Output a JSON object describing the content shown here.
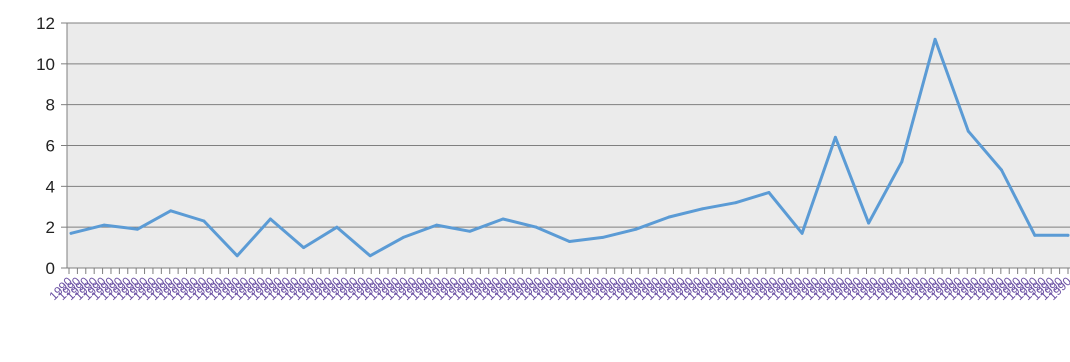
{
  "chart_data": {
    "type": "line",
    "title": "",
    "xlabel": "",
    "ylabel": "",
    "ylim": [
      0,
      12
    ],
    "yticks": [
      0,
      2,
      4,
      6,
      8,
      10,
      12
    ],
    "grid": true,
    "legend": "none",
    "colors": {
      "line": "#5b9bd5",
      "plot_background": "#ebebeb",
      "gridline": "#7f7f7f",
      "tick_label": "#6a4fa3"
    },
    "x_tick_count": 120,
    "x_tick_label_text": "1990",
    "series": [
      {
        "values": [
          1.7,
          2.1,
          1.9,
          2.8,
          2.3,
          0.6,
          2.4,
          1.0,
          2.0,
          0.6,
          1.5,
          2.1,
          1.8,
          2.4,
          2.0,
          1.3,
          1.5,
          1.9,
          2.5,
          2.9,
          3.2,
          3.7,
          1.7,
          6.4,
          2.2,
          5.2,
          11.2,
          6.7,
          4.8,
          1.6,
          1.6
        ]
      }
    ]
  }
}
